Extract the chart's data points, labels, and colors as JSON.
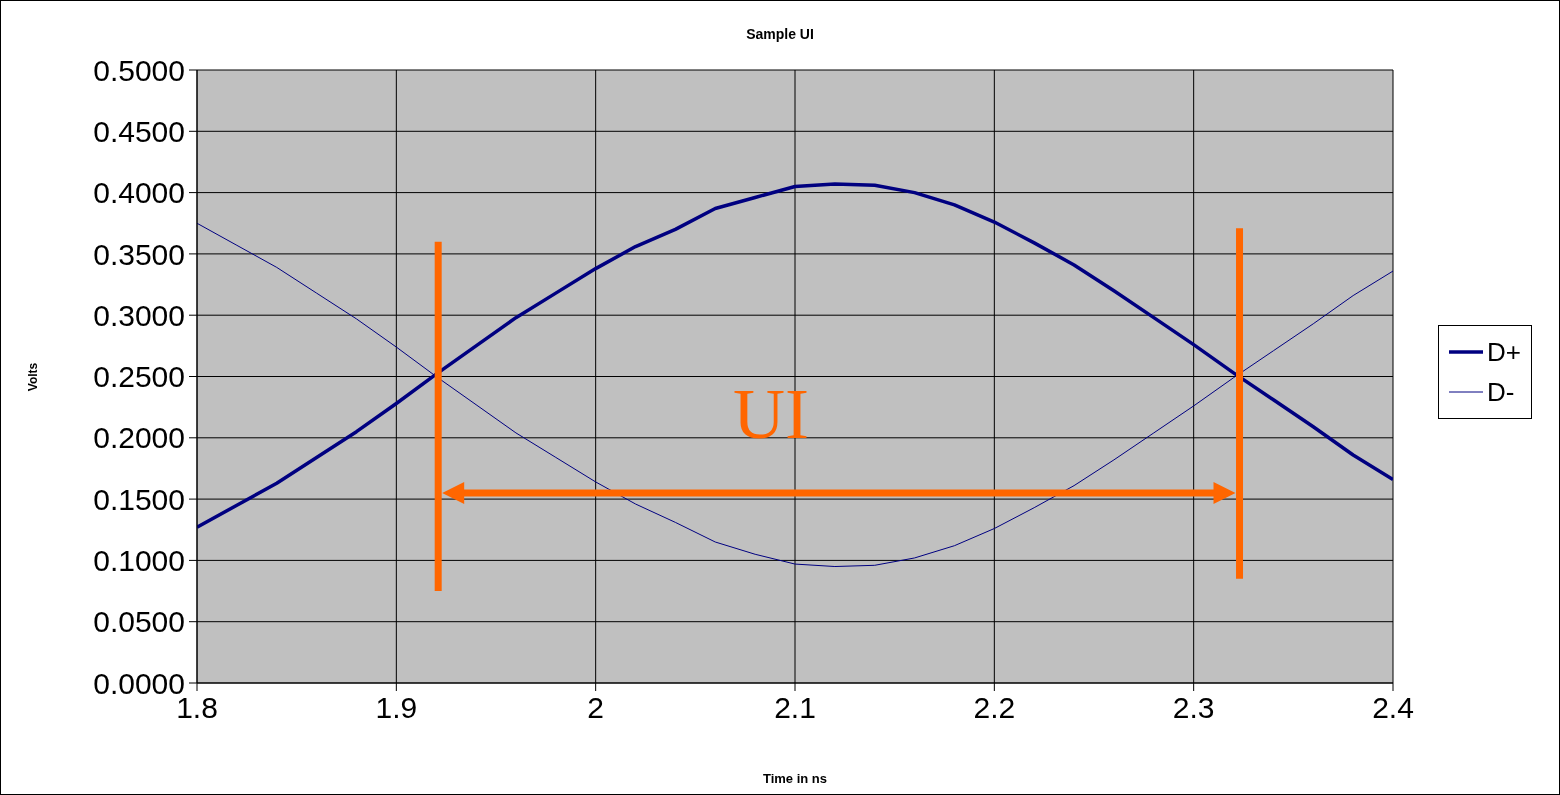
{
  "chart_data": {
    "type": "line",
    "title": "Sample UI",
    "xlabel": "Time in ns",
    "ylabel": "Volts",
    "annotations": [
      "UI"
    ],
    "x": [
      1.8,
      1.82,
      1.84,
      1.86,
      1.88,
      1.9,
      1.92,
      1.94,
      1.96,
      1.98,
      2.0,
      2.02,
      2.04,
      2.06,
      2.08,
      2.1,
      2.12,
      2.14,
      2.16,
      2.18,
      2.2,
      2.22,
      2.24,
      2.26,
      2.28,
      2.3,
      2.32,
      2.34,
      2.36,
      2.38,
      2.4
    ],
    "series": [
      {
        "name": "D+",
        "color": "#000080",
        "values": [
          0.127,
          0.145,
          0.163,
          0.184,
          0.205,
          0.228,
          0.252,
          0.275,
          0.298,
          0.318,
          0.338,
          0.356,
          0.37,
          0.387,
          0.396,
          0.405,
          0.407,
          0.406,
          0.4,
          0.39,
          0.376,
          0.359,
          0.341,
          0.32,
          0.298,
          0.276,
          0.253,
          0.231,
          0.209,
          0.186,
          0.166
        ]
      },
      {
        "name": "D-",
        "color": "#000080",
        "values": [
          0.375,
          0.357,
          0.339,
          0.318,
          0.297,
          0.274,
          0.25,
          0.227,
          0.204,
          0.184,
          0.164,
          0.146,
          0.131,
          0.115,
          0.105,
          0.097,
          0.095,
          0.096,
          0.102,
          0.112,
          0.126,
          0.143,
          0.161,
          0.182,
          0.204,
          0.226,
          0.249,
          0.271,
          0.293,
          0.316,
          0.336
        ]
      }
    ],
    "xlim": [
      1.8,
      2.4
    ],
    "xticks": [
      1.8,
      1.9,
      2,
      2.1,
      2.2,
      2.3,
      2.4
    ],
    "ylim": [
      0,
      0.5
    ],
    "yticks": [
      {
        "value": 0,
        "label": "0.0000"
      },
      {
        "value": 0.05,
        "label": "0.0500"
      },
      {
        "value": 0.1,
        "label": "0.1000"
      },
      {
        "value": 0.15,
        "label": "0.1500"
      },
      {
        "value": 0.2,
        "label": "0.2000"
      },
      {
        "value": 0.25,
        "label": "0.2500"
      },
      {
        "value": 0.3,
        "label": "0.3000"
      },
      {
        "value": 0.35,
        "label": "0.3500"
      },
      {
        "value": 0.4,
        "label": "0.4000"
      },
      {
        "value": 0.45,
        "label": "0.4500"
      },
      {
        "value": 0.5,
        "label": "0.5000"
      }
    ],
    "grid": true,
    "legend": "right",
    "marker": "none",
    "line_style": "solid"
  }
}
